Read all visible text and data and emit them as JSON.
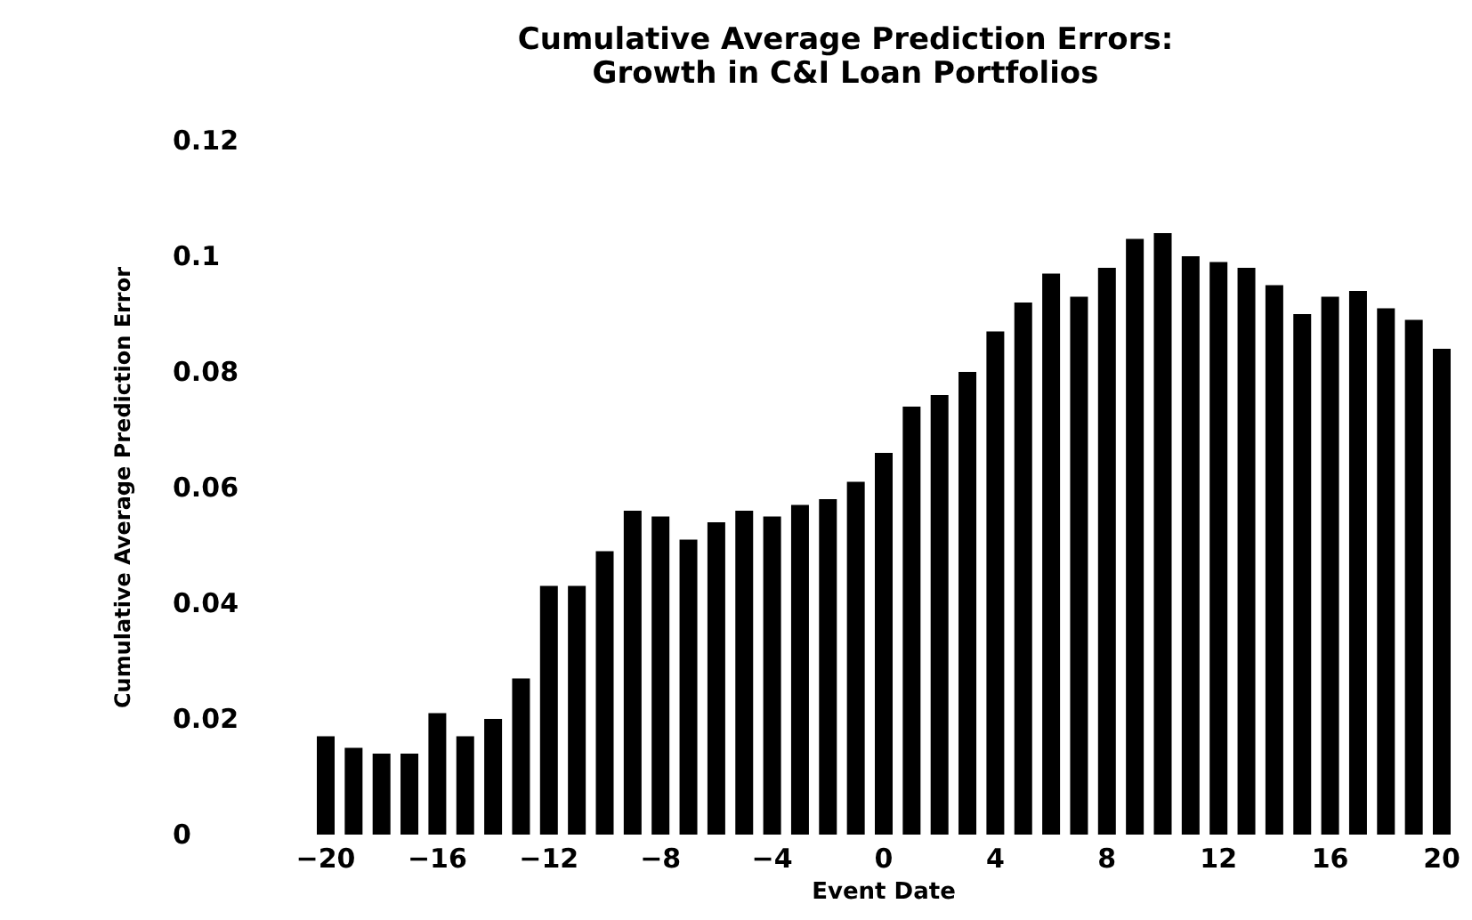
{
  "chart_data": {
    "type": "bar",
    "title": "Cumulative Average Prediction Errors:\nGrowth in C&I Loan Portfolios",
    "xlabel": "Event Date",
    "ylabel": "Cumulative Average Prediction Error",
    "x": [
      -20,
      -19,
      -18,
      -17,
      -16,
      -15,
      -14,
      -13,
      -12,
      -11,
      -10,
      -9,
      -8,
      -7,
      -6,
      -5,
      -4,
      -3,
      -2,
      -1,
      0,
      1,
      2,
      3,
      4,
      5,
      6,
      7,
      8,
      9,
      10,
      11,
      12,
      13,
      14,
      15,
      16,
      17,
      18,
      19,
      20
    ],
    "values": [
      0.017,
      0.015,
      0.014,
      0.014,
      0.021,
      0.017,
      0.02,
      0.027,
      0.043,
      0.043,
      0.049,
      0.056,
      0.055,
      0.051,
      0.054,
      0.056,
      0.055,
      0.057,
      0.058,
      0.061,
      0.066,
      0.074,
      0.076,
      0.08,
      0.087,
      0.092,
      0.097,
      0.093,
      0.098,
      0.103,
      0.104,
      0.1,
      0.099,
      0.098,
      0.095,
      0.09,
      0.093,
      0.094,
      0.091,
      0.089,
      0.084
    ],
    "color": "#000000",
    "xlim": [
      -20,
      20
    ],
    "xticks": [
      -20,
      -16,
      -12,
      -8,
      -4,
      0,
      4,
      8,
      12,
      16,
      20
    ],
    "ylim": [
      0,
      0.12
    ],
    "yticks": [
      0,
      0.02,
      0.04,
      0.06,
      0.08,
      {
        "value": 0.1,
        "label": "0.1"
      },
      0.12
    ],
    "grid": false
  }
}
